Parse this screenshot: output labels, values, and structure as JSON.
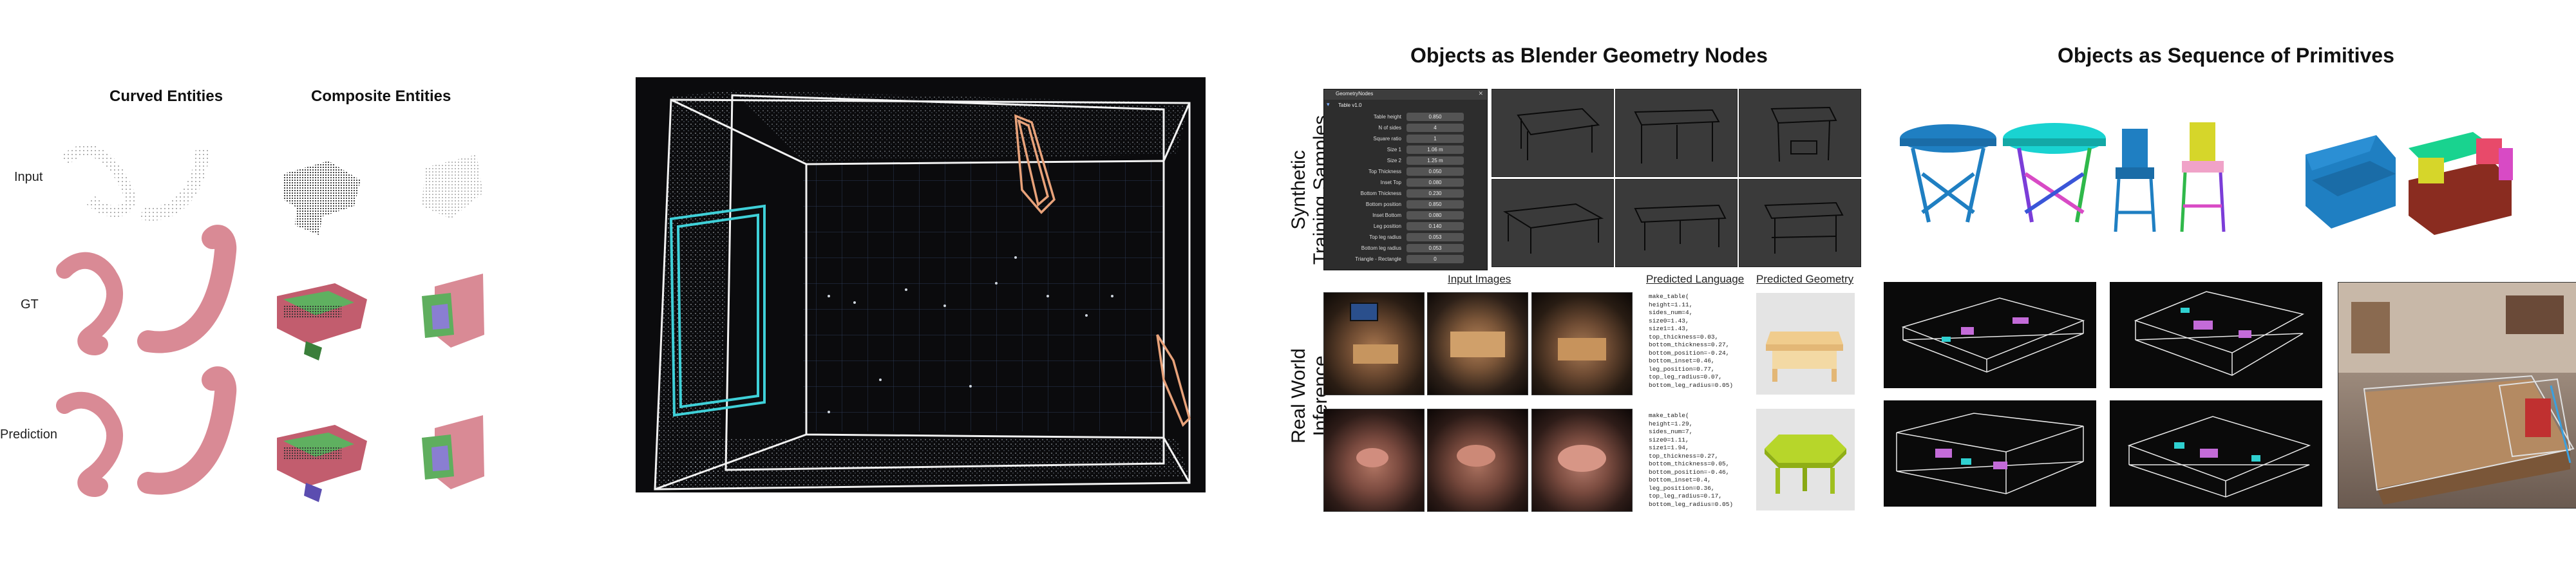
{
  "panel1": {
    "col_headers": [
      "Curved Entities",
      "Composite Entities"
    ],
    "row_labels": [
      "Input",
      "GT",
      "Prediction"
    ]
  },
  "panel3": {
    "title": "Objects as Blender Geometry Nodes",
    "row_labels": {
      "synthetic_line1": "Synthetic",
      "synthetic_line2": "Training Samples",
      "real_line1": "Real World",
      "real_line2": "Inference"
    },
    "col_headers": [
      "Input Images",
      "Predicted Language",
      "Predicted Geometry"
    ],
    "blender_panel": {
      "header": "GeometryNodes",
      "object": "Table v1.0",
      "params": [
        {
          "name": "Table height",
          "value": "0.850"
        },
        {
          "name": "N of sides",
          "value": "4"
        },
        {
          "name": "Square ratio",
          "value": "1"
        },
        {
          "name": "Size 1",
          "value": "1.06 m"
        },
        {
          "name": "Size 2",
          "value": "1.25 m"
        },
        {
          "name": "Top Thickness",
          "value": "0.050"
        },
        {
          "name": "Inset Top",
          "value": "0.080"
        },
        {
          "name": "Bottom Thickness",
          "value": "0.230"
        },
        {
          "name": "Bottom position",
          "value": "0.850"
        },
        {
          "name": "Inset Bottom",
          "value": "0.080"
        },
        {
          "name": "Leg position",
          "value": "0.140"
        },
        {
          "name": "Top leg radius",
          "value": "0.053"
        },
        {
          "name": "Bottom leg radius",
          "value": "0.053"
        },
        {
          "name": "Triangle - Rectangle",
          "value": "0"
        }
      ]
    },
    "code_samples": [
      "make_table(\nheight=1.11,\nsides_num=4,\nsize0=1.43,\nsize1=1.43,\ntop_thickness=0.03,\nbottom_thickness=0.27,\nbottom_position=-0.24,\nbottom_inset=0.46,\nleg_position=0.77,\ntop_leg_radius=0.07,\nbottom_leg_radius=0.05)",
      "make_table(\nheight=1.29,\nsides_num=7,\nsize0=1.11,\nsize1=1.94,\ntop_thickness=0.27,\nbottom_thickness=0.05,\nbottom_position=-0.46,\nbottom_inset=0.4,\nleg_position=0.36,\ntop_leg_radius=0.17,\nbottom_leg_radius=0.05)"
    ]
  },
  "panel4": {
    "title": "Objects as Sequence of Primitives"
  },
  "colors": {
    "cyan_box": "#3fd0d8",
    "orange_box": "#e8a27a",
    "pink_shape": "#d98a95",
    "blue_table": "#1f7fc2",
    "cyan_top": "#19d3d1",
    "lime_geo": "#b7d62a",
    "wood_geo": "#f0cc8d"
  }
}
